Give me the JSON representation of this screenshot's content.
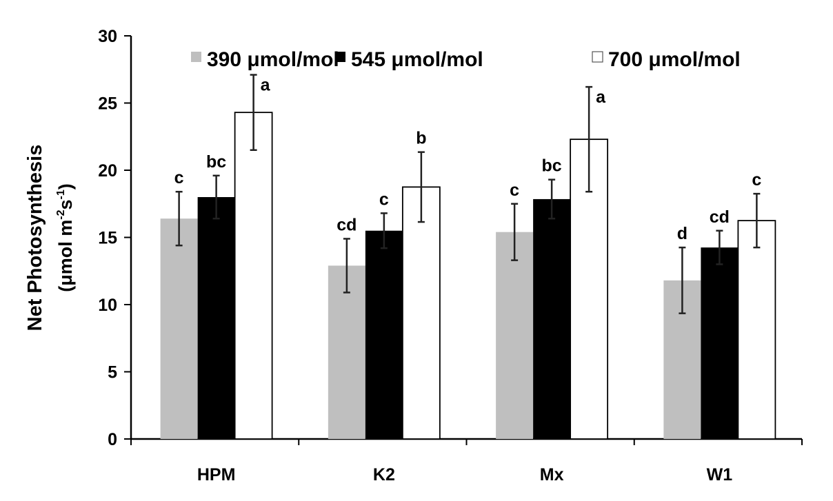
{
  "chart_data": {
    "type": "bar",
    "title": "",
    "xlabel": "",
    "ylabel": "Net Photosynthesis",
    "ylabel_units": "(μmol m-2s-1)",
    "ylim": [
      0,
      30
    ],
    "yticks": [
      0,
      5,
      10,
      15,
      20,
      25,
      30
    ],
    "categories": [
      "HPM",
      "K2",
      "Mx",
      "W1"
    ],
    "legend_position": "top",
    "series": [
      {
        "name": "390 μmol/mol",
        "color": "#bfbfbf",
        "values": [
          16.4,
          12.9,
          15.4,
          11.8
        ],
        "errors": [
          2.0,
          2.0,
          2.1,
          2.45
        ],
        "letters": [
          "c",
          "cd",
          "c",
          "d"
        ]
      },
      {
        "name": "545 μmol/mol",
        "color": "#000000",
        "values": [
          18.0,
          15.5,
          17.85,
          14.25
        ],
        "errors": [
          1.6,
          1.3,
          1.45,
          1.25
        ],
        "letters": [
          "bc",
          "c",
          "bc",
          "cd"
        ]
      },
      {
        "name": "700 μmol/mol",
        "color": "#ffffff",
        "values": [
          24.3,
          18.75,
          22.3,
          16.25
        ],
        "errors": [
          2.8,
          2.6,
          3.9,
          2.0
        ],
        "letters": [
          "a",
          "b",
          "a",
          "c"
        ]
      }
    ]
  }
}
